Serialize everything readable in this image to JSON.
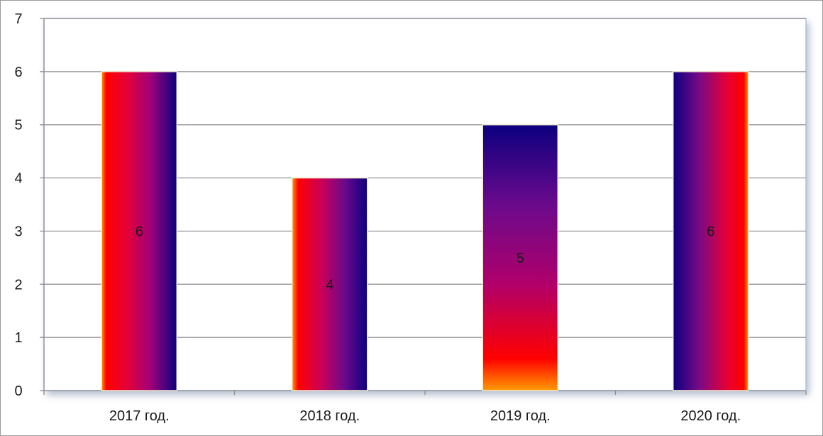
{
  "chart_data": {
    "type": "bar",
    "categories": [
      "2017 год.",
      "2018 год.",
      "2019 год.",
      "2020 год."
    ],
    "values": [
      6,
      4,
      5,
      6
    ],
    "data_labels": [
      "6",
      "4",
      "5",
      "6"
    ],
    "y_ticks": [
      "0",
      "1",
      "2",
      "3",
      "4",
      "5",
      "6",
      "7"
    ],
    "ylim": [
      0,
      7
    ],
    "grid": true,
    "legend": "none",
    "colors": {
      "red": "#ff0000",
      "crimson": "#e2003a",
      "magenta": "#b0006a",
      "purple": "#6a0a8c",
      "navy": "#0b007f",
      "orange": "#ff8c00",
      "gridline": "#8a8a8a",
      "frame": "#8fb0d8"
    }
  }
}
